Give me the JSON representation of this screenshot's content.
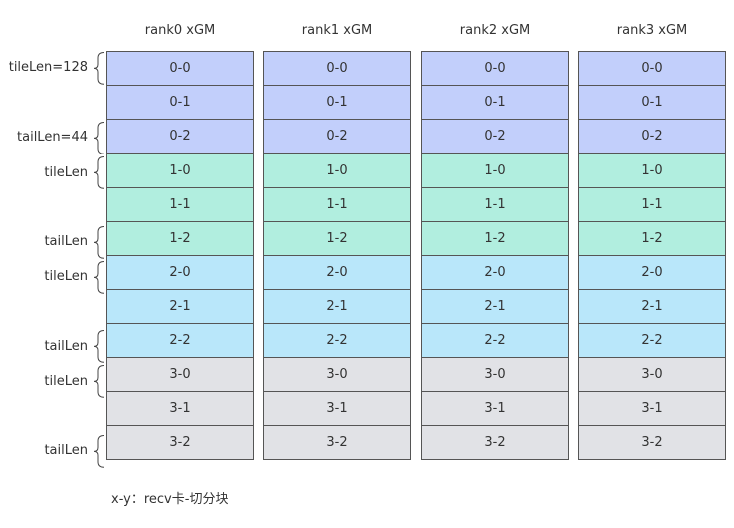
{
  "columns": [
    {
      "header": "rank0 xGM"
    },
    {
      "header": "rank1 xGM"
    },
    {
      "header": "rank2 xGM"
    },
    {
      "header": "rank3 xGM"
    }
  ],
  "rows": [
    "0-0",
    "0-1",
    "0-2",
    "1-0",
    "1-1",
    "1-2",
    "2-0",
    "2-1",
    "2-2",
    "3-0",
    "3-1",
    "3-2"
  ],
  "group_colors": [
    "#c2cffb",
    "#b1eedf",
    "#b9e7fa",
    "#e1e2e6"
  ],
  "annotations": [
    {
      "label": "tileLen=128",
      "row": 0
    },
    {
      "label": "tailLen=44",
      "row": 2
    },
    {
      "label": "tileLen",
      "row": 3
    },
    {
      "label": "tailLen",
      "row": 5
    },
    {
      "label": "tileLen",
      "row": 6
    },
    {
      "label": "tailLen",
      "row": 8
    },
    {
      "label": "tileLen",
      "row": 9
    },
    {
      "label": "tailLen",
      "row": 11
    }
  ],
  "footnote": "x-y：recv卡-切分块"
}
